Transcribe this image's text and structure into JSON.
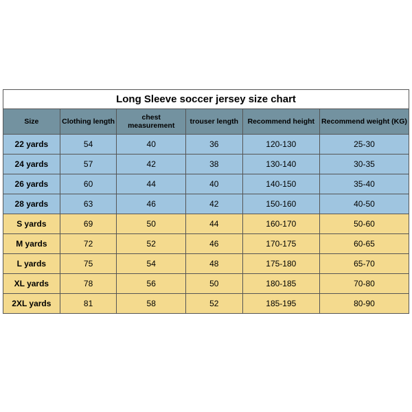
{
  "chart": {
    "title": "Long Sleeve soccer jersey size chart",
    "header_bg": "#7392a0",
    "group_colors": {
      "youth": "#9fc5e0",
      "adult": "#f4da8e"
    },
    "border_color": "#555555",
    "col_widths_pct": [
      14,
      14,
      17,
      14,
      19,
      22
    ],
    "columns": [
      "Size",
      "Clothing length",
      "chest measurement",
      "trouser length",
      "Recommend height",
      "Recommend weight (KG)"
    ],
    "rows": [
      {
        "group": "youth",
        "cells": [
          "22 yards",
          "54",
          "40",
          "36",
          "120-130",
          "25-30"
        ]
      },
      {
        "group": "youth",
        "cells": [
          "24 yards",
          "57",
          "42",
          "38",
          "130-140",
          "30-35"
        ]
      },
      {
        "group": "youth",
        "cells": [
          "26 yards",
          "60",
          "44",
          "40",
          "140-150",
          "35-40"
        ]
      },
      {
        "group": "youth",
        "cells": [
          "28 yards",
          "63",
          "46",
          "42",
          "150-160",
          "40-50"
        ]
      },
      {
        "group": "adult",
        "cells": [
          "S yards",
          "69",
          "50",
          "44",
          "160-170",
          "50-60"
        ]
      },
      {
        "group": "adult",
        "cells": [
          "M yards",
          "72",
          "52",
          "46",
          "170-175",
          "60-65"
        ]
      },
      {
        "group": "adult",
        "cells": [
          "L yards",
          "75",
          "54",
          "48",
          "175-180",
          "65-70"
        ]
      },
      {
        "group": "adult",
        "cells": [
          "XL yards",
          "78",
          "56",
          "50",
          "180-185",
          "70-80"
        ]
      },
      {
        "group": "adult",
        "cells": [
          "2XL yards",
          "81",
          "58",
          "52",
          "185-195",
          "80-90"
        ]
      }
    ]
  }
}
